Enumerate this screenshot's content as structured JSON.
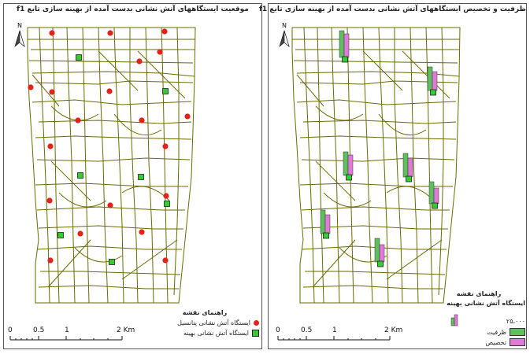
{
  "left_panel": {
    "title": "موقعیت ایستگاههای آتش نشانی بدست آمده از بهینه سازی تابع f1",
    "legend_title": "راهنمای نقشه",
    "legend_items": [
      {
        "label": "ایستگاه آتش نشانی پتانسیل",
        "symbol": "red-dot",
        "color": "#e2231a"
      },
      {
        "label": "ایستگاه آتش نشانی بهینه",
        "symbol": "green-square",
        "color": "#33cc33"
      }
    ],
    "north_label": "N",
    "scale_labels": [
      "0",
      "0.5",
      "1",
      "2 Km"
    ],
    "red_points": [
      [
        61,
        37
      ],
      [
        135,
        37
      ],
      [
        204,
        35
      ],
      [
        172,
        73
      ],
      [
        198,
        61
      ],
      [
        34,
        106
      ],
      [
        61,
        112
      ],
      [
        134,
        111
      ],
      [
        94,
        148
      ],
      [
        175,
        148
      ],
      [
        233,
        143
      ],
      [
        59,
        181
      ],
      [
        205,
        181
      ],
      [
        58,
        250
      ],
      [
        135,
        256
      ],
      [
        206,
        244
      ],
      [
        97,
        292
      ],
      [
        175,
        290
      ],
      [
        59,
        326
      ],
      [
        205,
        326
      ]
    ],
    "green_points": [
      [
        95,
        68
      ],
      [
        205,
        111
      ],
      [
        97,
        218
      ],
      [
        174,
        220
      ],
      [
        207,
        254
      ],
      [
        72,
        294
      ],
      [
        137,
        328
      ]
    ]
  },
  "right_panel": {
    "title": "ظرفیت و تخصیص ایستگاههای آتش نشانی بدست آمده از بهینه سازی تابع f1",
    "legend_title": "راهنمای نقشه",
    "legend_station_label": "ایستگاه آتش نشانی بهینه",
    "legend_value": "۲۵،۰۰۰",
    "legend_items": [
      {
        "label": "ظرفیت",
        "color": "#5fbf5f"
      },
      {
        "label": "تخصیص",
        "color": "#e07ad6"
      }
    ],
    "north_label": "N",
    "scale_labels": [
      "0",
      "0.5",
      "1",
      "2 Km"
    ],
    "stations": [
      [
        97,
        68,
        34,
        30
      ],
      [
        209,
        110,
        30,
        24
      ],
      [
        102,
        218,
        30,
        26
      ],
      [
        178,
        220,
        30,
        24
      ],
      [
        211,
        254,
        28,
        20
      ],
      [
        73,
        292,
        30,
        24
      ],
      [
        142,
        328,
        30,
        22
      ]
    ]
  },
  "colors": {
    "roads": "#6b6b00",
    "boundary": "#6b6b00",
    "red": "#e2231a",
    "green": "#33cc33",
    "capacity": "#5fbf5f",
    "allocation": "#e07ad6"
  }
}
